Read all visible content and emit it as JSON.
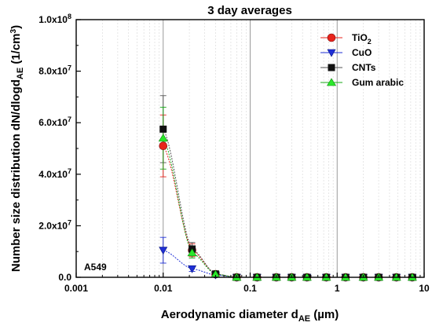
{
  "chart_data": {
    "type": "scatter",
    "title": "3 day averages",
    "xlabel": {
      "main": "Aerodynamic diameter d",
      "sub": "AE",
      "tail": " (µm)"
    },
    "ylabel": {
      "main": "Number size distribution dN/dlogd",
      "sub": "AE",
      "tail": " (1/cm",
      "sup": "3",
      "end": ")"
    },
    "x_scale": "log",
    "xlim": [
      0.001,
      10
    ],
    "ylim": [
      0,
      100000000
    ],
    "x_ticks": [
      {
        "value": 0.001,
        "label": "0.001"
      },
      {
        "value": 0.01,
        "label": "0.01"
      },
      {
        "value": 0.1,
        "label": "0.1"
      },
      {
        "value": 1,
        "label": "1"
      },
      {
        "value": 10,
        "label": "10"
      }
    ],
    "y_ticks": [
      {
        "value": 0,
        "label": "0.0"
      },
      {
        "value": 20000000,
        "label": "2.0x10",
        "exp": "7"
      },
      {
        "value": 40000000,
        "label": "4.0x10",
        "exp": "7"
      },
      {
        "value": 60000000,
        "label": "6.0x10",
        "exp": "7"
      },
      {
        "value": 80000000,
        "label": "8.0x10",
        "exp": "7"
      },
      {
        "value": 100000000,
        "label": "1.0x10",
        "exp": "8"
      }
    ],
    "grid": "vertical",
    "legend_position": "top-right",
    "annotation": "A549",
    "x": [
      0.01,
      0.0215,
      0.04,
      0.07,
      0.12,
      0.2,
      0.3,
      0.45,
      0.75,
      1.25,
      2,
      3,
      4.8,
      7.3
    ],
    "series": [
      {
        "name": "TiO",
        "name_sub": "2",
        "marker": "circle",
        "color": "#e8231b",
        "line_color": "#e8231b",
        "values": [
          51000000,
          10500000,
          1200000,
          0,
          0,
          0,
          0,
          0,
          0,
          0,
          0,
          0,
          0,
          0
        ],
        "error": [
          12000000,
          2500000,
          300000,
          0,
          0,
          0,
          0,
          0,
          0,
          0,
          0,
          0,
          0,
          0
        ]
      },
      {
        "name": "CuO",
        "marker": "triangle-down",
        "color": "#1f2fd6",
        "line_color": "#1f2fd6",
        "values": [
          10500000,
          3300000,
          900000,
          0,
          0,
          0,
          0,
          0,
          0,
          0,
          0,
          0,
          0,
          0
        ],
        "error": [
          5000000,
          1000000,
          300000,
          0,
          0,
          0,
          0,
          0,
          0,
          0,
          0,
          0,
          0,
          0
        ]
      },
      {
        "name": "CNTs",
        "marker": "square",
        "color": "#111111",
        "line_color": "#555555",
        "values": [
          57500000,
          11000000,
          1300000,
          0,
          0,
          0,
          0,
          0,
          0,
          0,
          0,
          0,
          0,
          0
        ],
        "error": [
          13000000,
          2500000,
          300000,
          0,
          0,
          0,
          0,
          0,
          0,
          0,
          0,
          0,
          0,
          0
        ]
      },
      {
        "name": "Gum arabic",
        "marker": "triangle-up",
        "color": "#2be82b",
        "line_color": "#1aa81a",
        "values": [
          54000000,
          9500000,
          1200000,
          0,
          0,
          0,
          0,
          0,
          0,
          0,
          0,
          0,
          0,
          0
        ],
        "error": [
          12000000,
          2000000,
          300000,
          0,
          0,
          0,
          0,
          0,
          0,
          0,
          0,
          0,
          0,
          0
        ]
      }
    ]
  }
}
